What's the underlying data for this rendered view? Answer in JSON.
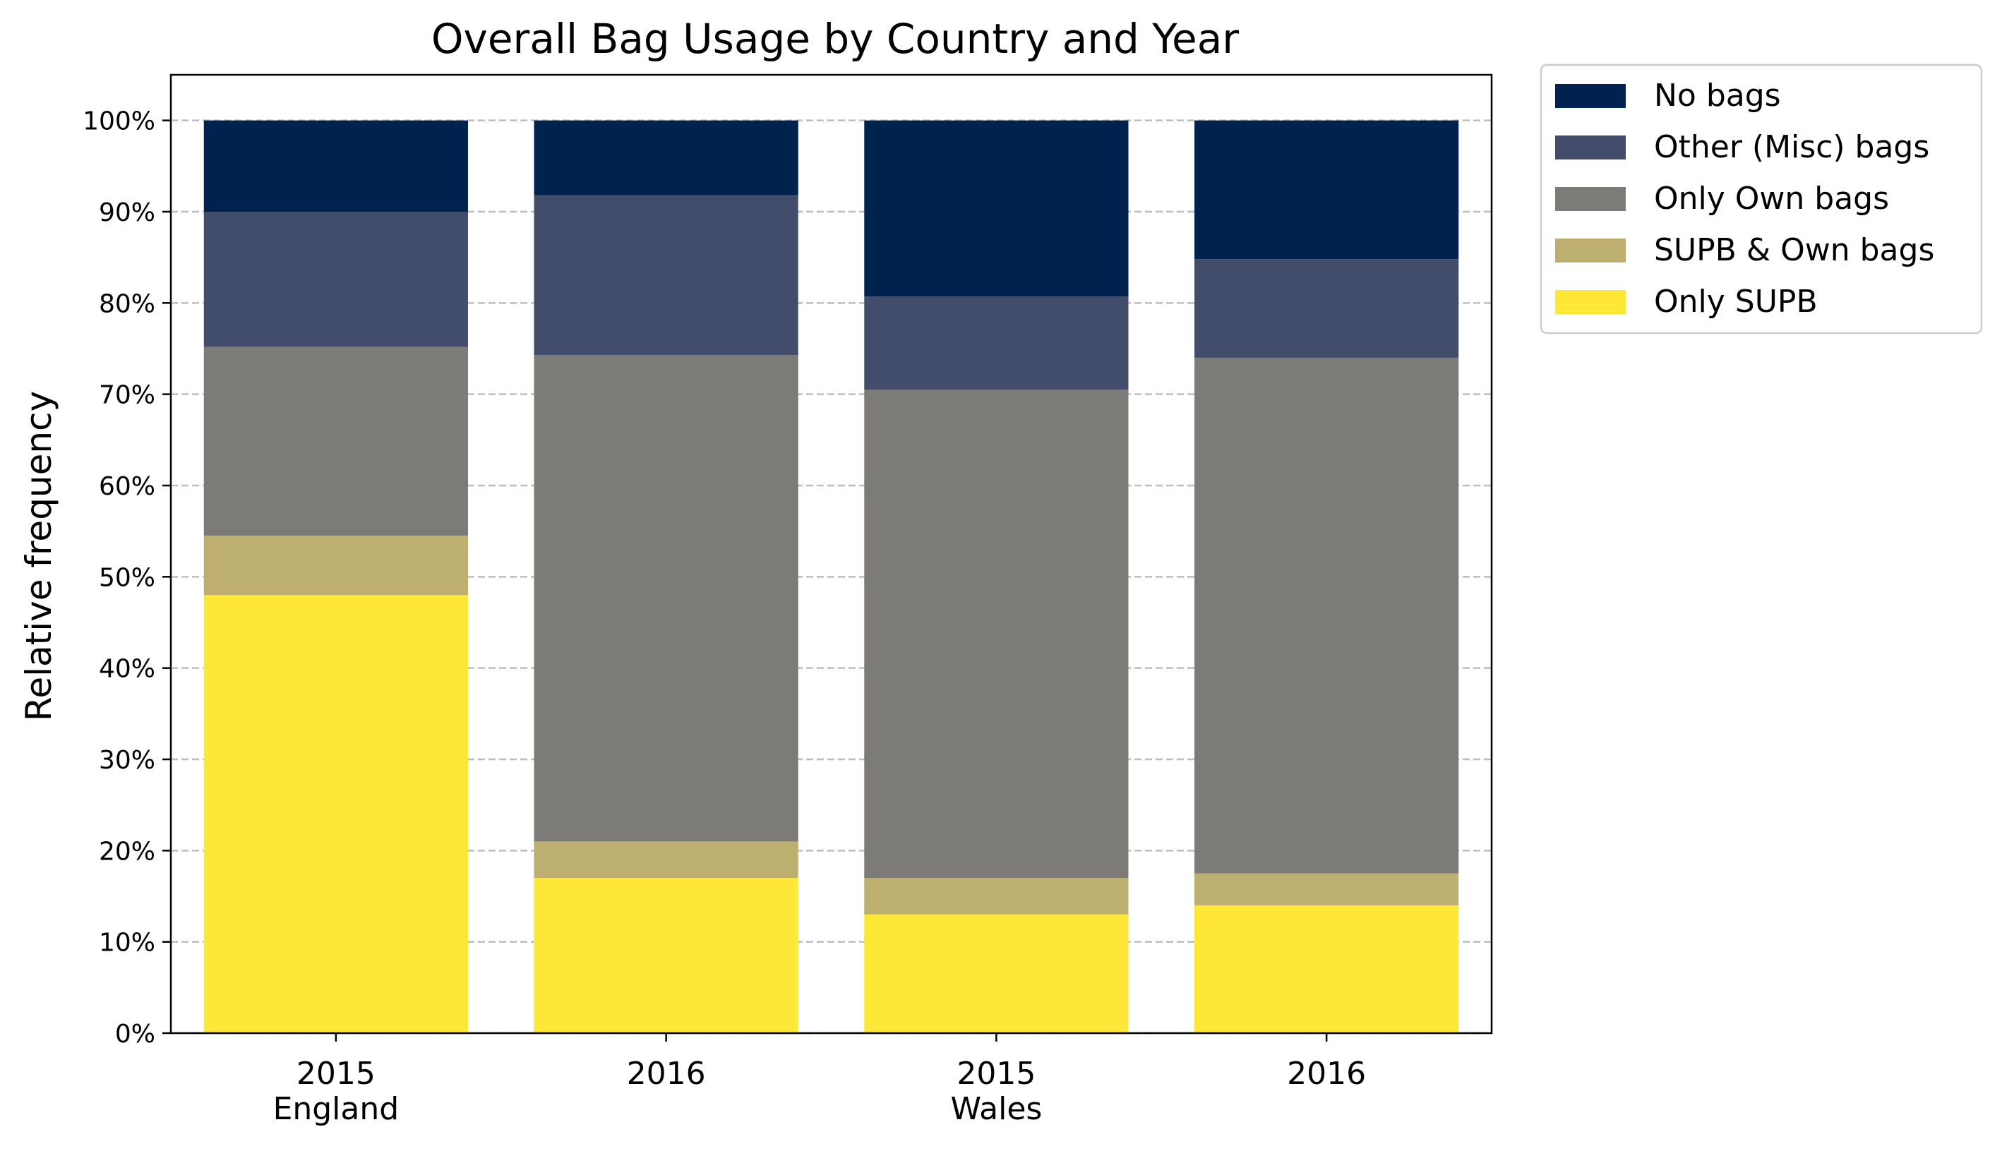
{
  "chart_data": {
    "type": "bar",
    "stacked": true,
    "title": "Overall Bag Usage by Country and Year",
    "xlabel": "",
    "ylabel": "Relative frequency",
    "ylim": [
      0,
      1.05
    ],
    "yticks": [
      0,
      0.1,
      0.2,
      0.3,
      0.4,
      0.5,
      0.6,
      0.7,
      0.8,
      0.9,
      1.0
    ],
    "ytick_labels": [
      "0%",
      "10%",
      "20%",
      "30%",
      "40%",
      "50%",
      "60%",
      "70%",
      "80%",
      "90%",
      "100%"
    ],
    "categories": [
      "2015",
      "2016",
      "2015",
      "2016"
    ],
    "groups": [
      {
        "label": "England",
        "start": 0,
        "end": 1
      },
      {
        "label": "Wales",
        "start": 2,
        "end": 3
      }
    ],
    "grid": "y-dashed",
    "legend_position": "outside-top-right",
    "series": [
      {
        "name": "Only SUPB",
        "color": "#fde737",
        "values": [
          0.48,
          0.17,
          0.13,
          0.14
        ]
      },
      {
        "name": "SUPB & Own bags",
        "color": "#bcaf6f",
        "values": [
          0.065,
          0.04,
          0.04,
          0.035
        ]
      },
      {
        "name": "Only Own bags",
        "color": "#7c7b78",
        "values": [
          0.207,
          0.533,
          0.535,
          0.565
        ]
      },
      {
        "name": "Other (Misc) bags",
        "color": "#414d6b",
        "values": [
          0.148,
          0.175,
          0.102,
          0.108
        ]
      },
      {
        "name": "No bags",
        "color": "#00224e",
        "values": [
          0.1,
          0.082,
          0.193,
          0.152
        ]
      }
    ]
  }
}
